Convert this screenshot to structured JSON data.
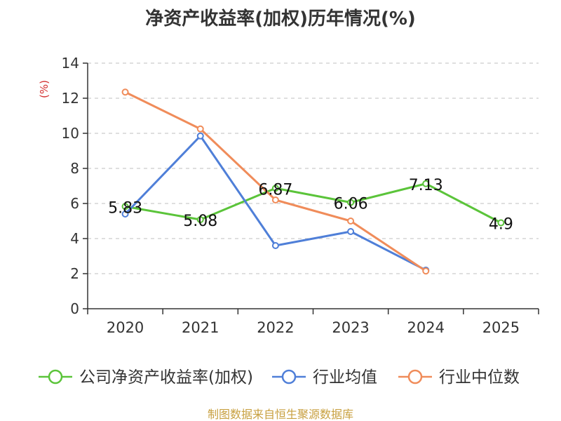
{
  "chart_data": {
    "type": "line",
    "title": "净资产收益率(加权)历年情况(%)",
    "ylabel": "(%)",
    "xlabel": "",
    "ylim": [
      0,
      14
    ],
    "yticks": [
      0,
      2,
      4,
      6,
      8,
      10,
      12,
      14
    ],
    "categories": [
      "2020",
      "2021",
      "2022",
      "2023",
      "2024",
      "2025"
    ],
    "series": [
      {
        "name": "公司净资产收益率(加权)",
        "color": "#5bc43a",
        "values": [
          5.83,
          5.08,
          6.87,
          6.06,
          7.13,
          4.9
        ],
        "labels": [
          "5.83",
          "5.08",
          "6.87",
          "6.06",
          "7.13",
          "4.9"
        ]
      },
      {
        "name": "行业均值",
        "color": "#4f7fd8",
        "values": [
          5.4,
          9.85,
          3.6,
          4.4,
          2.2,
          null
        ],
        "labels": null
      },
      {
        "name": "行业中位数",
        "color": "#f08c5a",
        "values": [
          12.35,
          10.25,
          6.2,
          5.0,
          2.15,
          null
        ],
        "labels": null
      }
    ],
    "grid": true,
    "legend_position": "bottom"
  },
  "source_text": "制图数据来自恒生聚源数据库",
  "colors": {
    "axis": "#333333",
    "grid": "#cccccc",
    "ylabel": "#d32f2f",
    "source": "#c8a040"
  }
}
